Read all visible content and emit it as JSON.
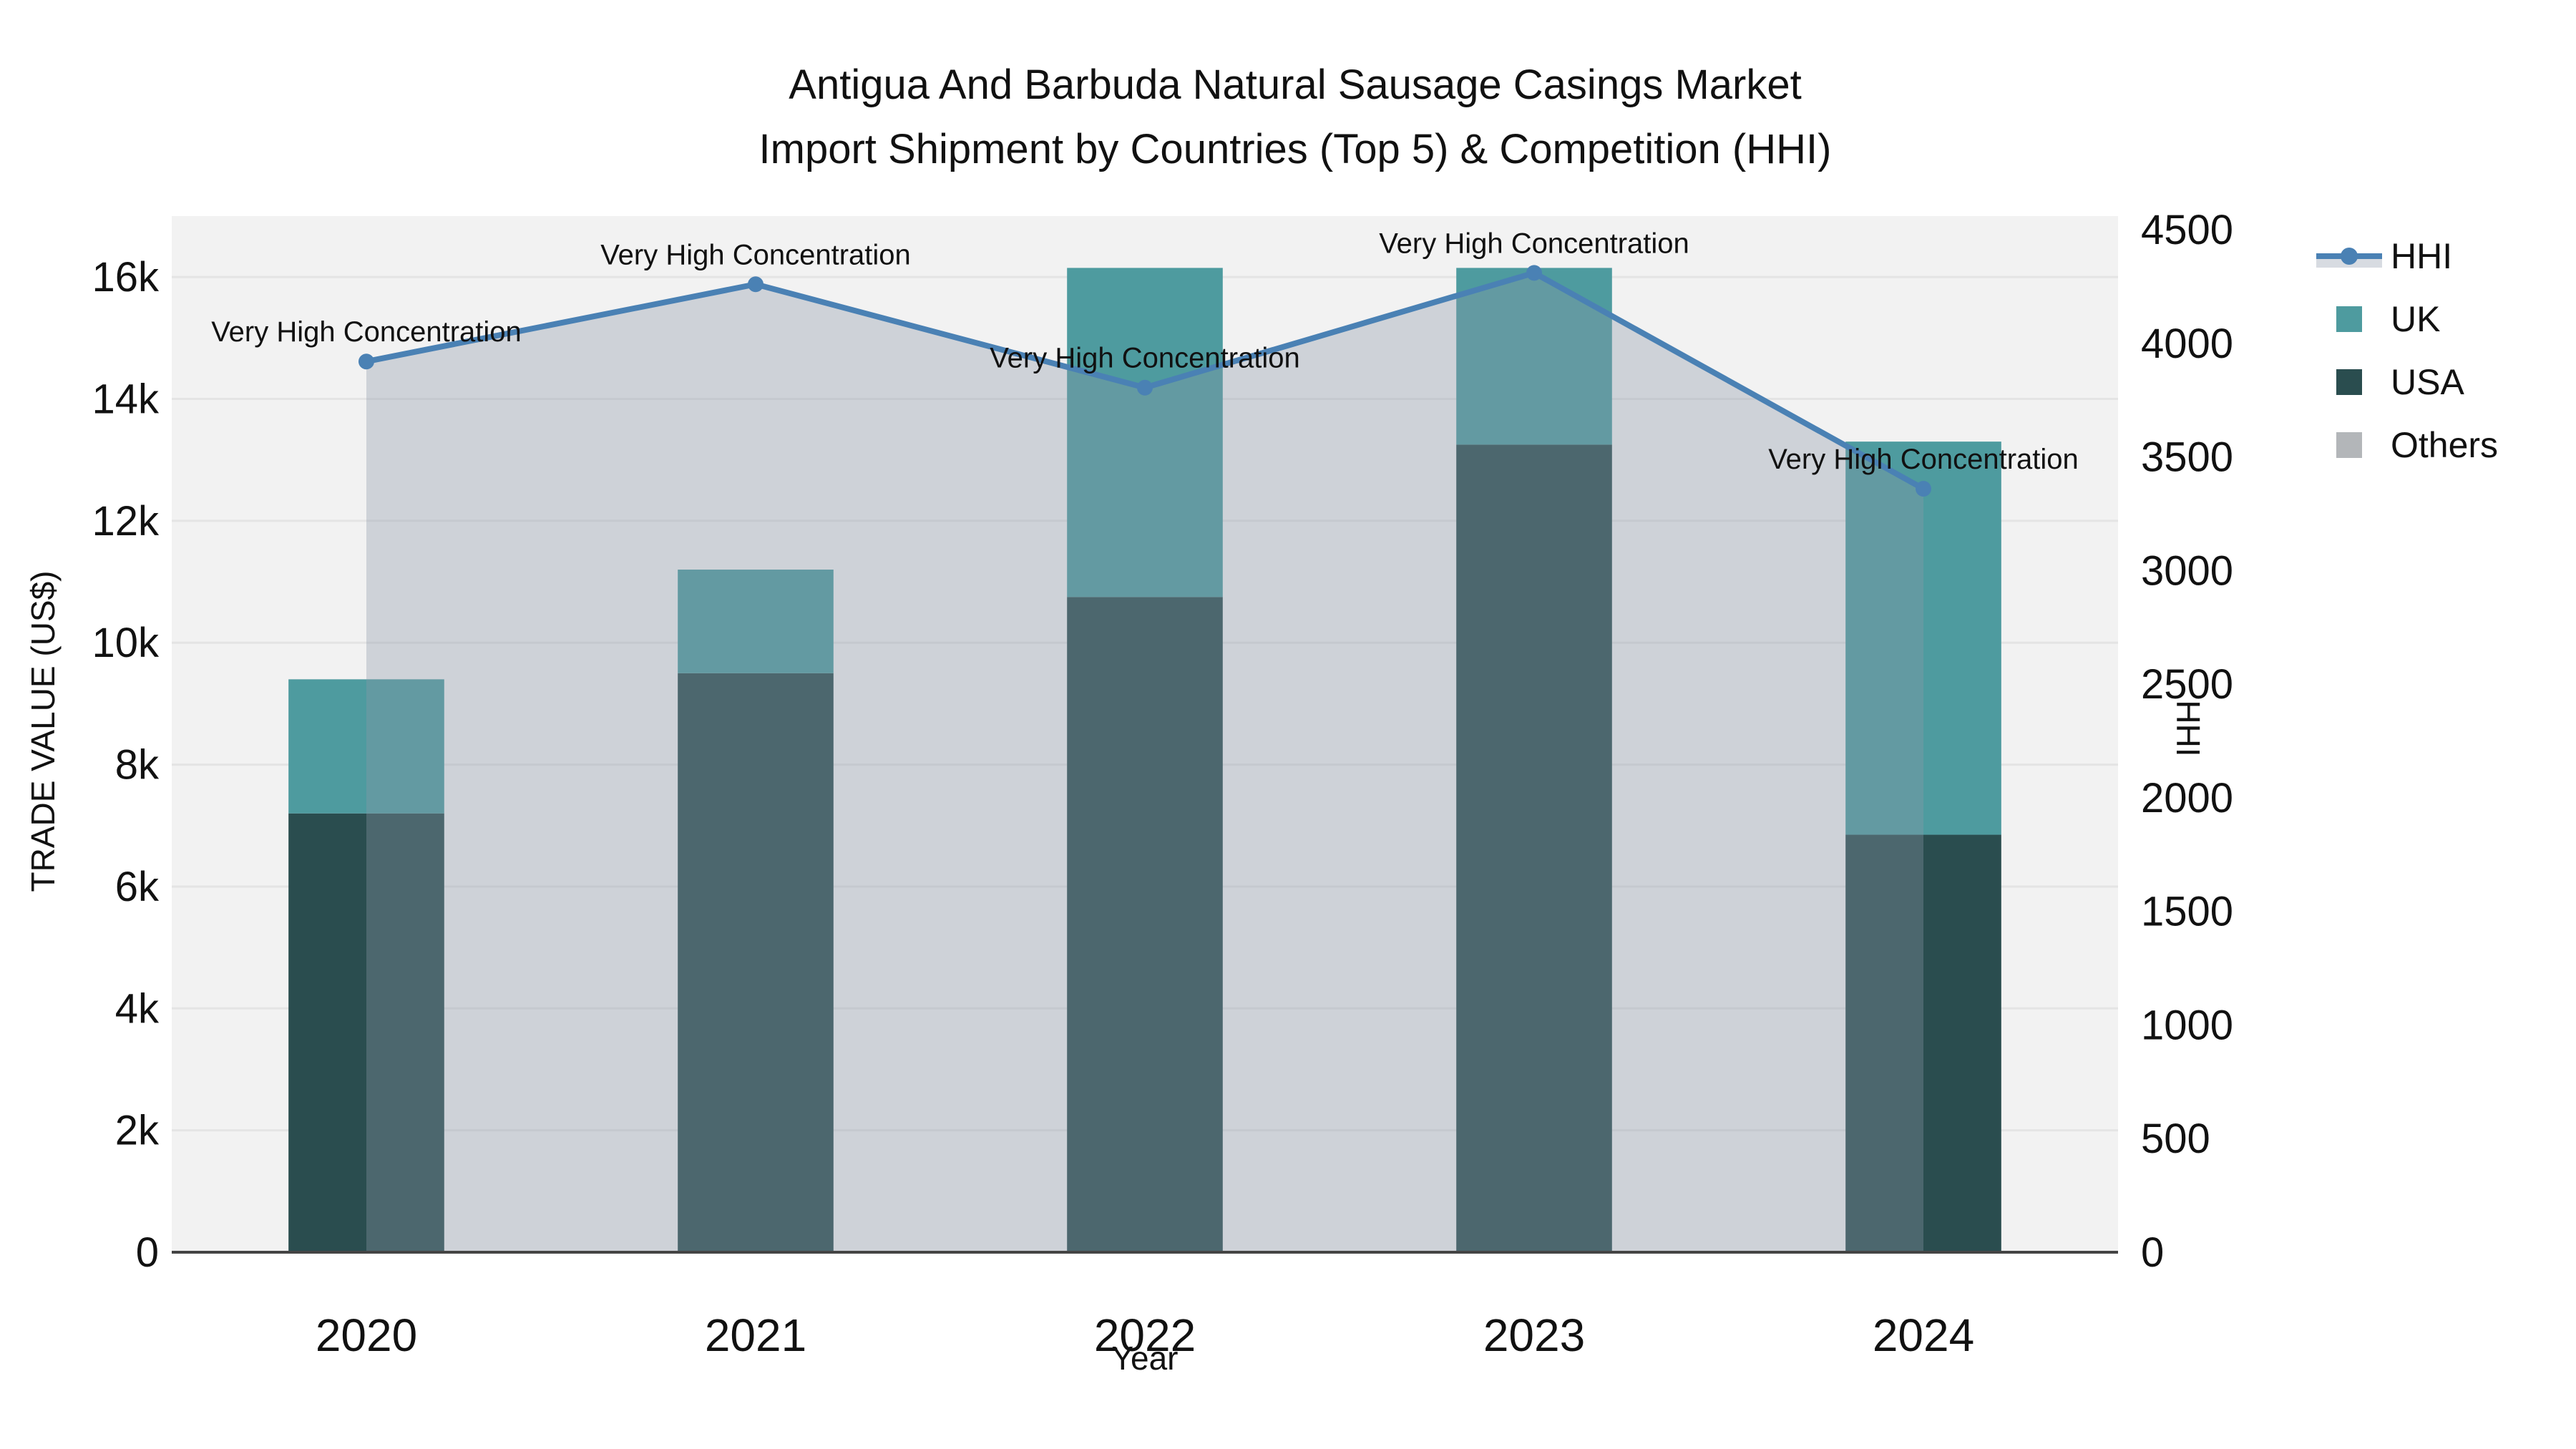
{
  "chart_data": {
    "type": "bar+line",
    "title_line1": "Antigua And Barbuda Natural Sausage Casings Market",
    "title_line2": "Import Shipment by Countries (Top 5) & Competition (HHI)",
    "categories": [
      "2020",
      "2021",
      "2022",
      "2023",
      "2024"
    ],
    "bar_series": [
      {
        "name": "USA",
        "color": "#2A4D4F",
        "values": [
          7200,
          9500,
          10750,
          13250,
          6850
        ]
      },
      {
        "name": "UK",
        "color": "#4E9B9F",
        "values": [
          2200,
          1700,
          5400,
          2900,
          6450
        ]
      },
      {
        "name": "Others",
        "color": "#B3B6B9",
        "values": [
          0,
          0,
          0,
          0,
          0
        ]
      }
    ],
    "line_series": {
      "name": "HHI",
      "color": "#4A81B4",
      "values": [
        3920,
        4260,
        3805,
        4310,
        3360
      ],
      "fill": "tozeroy",
      "fill_color": "rgba(140,152,170,0.35)"
    },
    "annotations": [
      {
        "category": "2020",
        "text": "Very High Concentration"
      },
      {
        "category": "2021",
        "text": "Very High Concentration"
      },
      {
        "category": "2022",
        "text": "Very High Concentration"
      },
      {
        "category": "2023",
        "text": "Very High Concentration"
      },
      {
        "category": "2024",
        "text": "Very High Concentration"
      }
    ],
    "axes": {
      "left": {
        "label": "TRADE VALUE (US$)",
        "range": [
          0,
          17000
        ],
        "ticks": [
          {
            "value": 0,
            "label": "0"
          },
          {
            "value": 2000,
            "label": "2k"
          },
          {
            "value": 4000,
            "label": "4k"
          },
          {
            "value": 6000,
            "label": "6k"
          },
          {
            "value": 8000,
            "label": "8k"
          },
          {
            "value": 10000,
            "label": "10k"
          },
          {
            "value": 12000,
            "label": "12k"
          },
          {
            "value": 14000,
            "label": "14k"
          },
          {
            "value": 16000,
            "label": "16k"
          }
        ]
      },
      "right": {
        "label": "HHI",
        "range": [
          0,
          4560
        ],
        "ticks": [
          {
            "value": 0,
            "label": "0"
          },
          {
            "value": 500,
            "label": "500"
          },
          {
            "value": 1000,
            "label": "1000"
          },
          {
            "value": 1500,
            "label": "1500"
          },
          {
            "value": 2000,
            "label": "2000"
          },
          {
            "value": 2500,
            "label": "2500"
          },
          {
            "value": 3000,
            "label": "3000"
          },
          {
            "value": 3500,
            "label": "3500"
          },
          {
            "value": 4000,
            "label": "4000"
          },
          {
            "value": 4500,
            "label": "4500"
          }
        ]
      },
      "x": {
        "label": "Year"
      }
    },
    "legend": [
      {
        "label": "HHI",
        "type": "line"
      },
      {
        "label": "UK",
        "type": "swatch",
        "color": "#4E9B9F"
      },
      {
        "label": "USA",
        "type": "swatch",
        "color": "#2A4D4F"
      },
      {
        "label": "Others",
        "type": "swatch",
        "color": "#B3B6B9"
      }
    ],
    "layout_hints": {
      "legend_position": "top-right",
      "grid": "horizontal-from-left-axis",
      "plot_bg": "#F2F2F2",
      "grid_color": "#E4E4E4",
      "axis_line_color": "#444444",
      "text_color": "#111111",
      "bar_mode": "stacked"
    }
  }
}
